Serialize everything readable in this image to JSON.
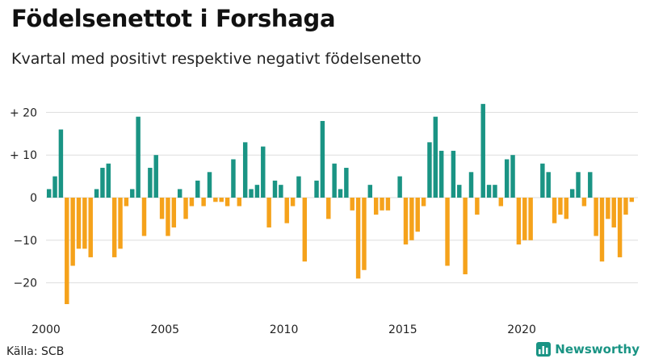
{
  "header": {
    "title": "Födelsenettot i Forshaga",
    "subtitle": "Kvartal med positivt respektive negativt födelsenetto"
  },
  "footer": {
    "source": "Källa: SCB",
    "brand": "Newsworthy"
  },
  "colors": {
    "positive": "#1a9484",
    "negative": "#f5a21b",
    "grid": "#dddddd",
    "brand": "#1a9484"
  },
  "chart_data": {
    "type": "bar",
    "title": "Födelsenettot i Forshaga",
    "subtitle": "Kvartal med positivt respektive negativt födelsenetto",
    "xlabel": "",
    "ylabel": "",
    "start_year": 2000,
    "periods_per_year": 4,
    "x_ticks": [
      "2000",
      "2005",
      "2010",
      "2015",
      "2020"
    ],
    "x_tick_values": [
      2000,
      2005,
      2010,
      2015,
      2020
    ],
    "y_ticks": [
      20,
      10,
      0,
      -10,
      -20
    ],
    "y_tick_labels": [
      "+ 20",
      "+ 10",
      "0",
      "−10",
      "−20"
    ],
    "ylim": [
      -27,
      23
    ],
    "values": [
      2,
      5,
      16,
      -25,
      -16,
      -12,
      -12,
      -14,
      2,
      7,
      8,
      -14,
      -12,
      -2,
      2,
      19,
      -9,
      7,
      10,
      -5,
      -9,
      -7,
      2,
      -5,
      -2,
      4,
      -2,
      6,
      -1,
      -1,
      -2,
      9,
      -2,
      13,
      2,
      3,
      12,
      -7,
      4,
      3,
      -6,
      -2,
      5,
      -15,
      0,
      4,
      18,
      -5,
      8,
      2,
      7,
      -3,
      -19,
      -17,
      3,
      -4,
      -3,
      -3,
      0,
      5,
      -11,
      -10,
      -8,
      -2,
      13,
      19,
      11,
      -16,
      11,
      3,
      -18,
      6,
      -4,
      22,
      3,
      3,
      -2,
      9,
      10,
      -11,
      -10,
      -10,
      0,
      8,
      6,
      -6,
      -4,
      -5,
      2,
      6,
      -2,
      6,
      -9,
      -15,
      -5,
      -7,
      -14,
      -4,
      -1
    ]
  }
}
